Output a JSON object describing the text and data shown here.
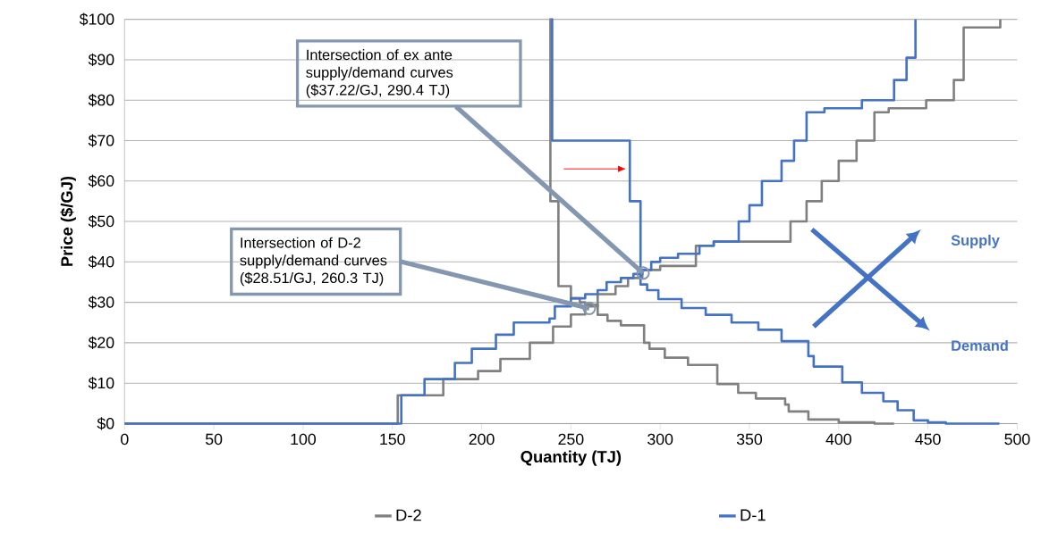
{
  "chart_data": {
    "type": "step",
    "xlabel": "Quantity (TJ)",
    "ylabel": "Price ($/GJ)",
    "xlim": [
      0,
      500
    ],
    "ylim": [
      0,
      100
    ],
    "xticks": [
      0,
      50,
      100,
      150,
      200,
      250,
      300,
      350,
      400,
      450,
      500
    ],
    "yticks": [
      {
        "value": 0,
        "label": "$0"
      },
      {
        "value": 10,
        "label": "$10"
      },
      {
        "value": 20,
        "label": "$20"
      },
      {
        "value": 30,
        "label": "$30"
      },
      {
        "value": 40,
        "label": "$40"
      },
      {
        "value": 50,
        "label": "$50"
      },
      {
        "value": 60,
        "label": "$60"
      },
      {
        "value": 70,
        "label": "$70"
      },
      {
        "value": 80,
        "label": "$80"
      },
      {
        "value": 90,
        "label": "$90"
      },
      {
        "value": 100,
        "label": "$100"
      }
    ],
    "grid": "y",
    "legend": "bottom",
    "marker": "none",
    "series": [
      {
        "name": "D-2",
        "color": "#808080",
        "x": [
          0,
          153,
          178.5,
          198,
          210.5,
          227,
          240,
          250,
          258,
          265,
          275,
          282,
          290,
          300,
          320,
          330,
          373,
          382,
          390.5,
          400,
          410,
          420,
          428,
          449,
          464.5,
          470,
          490.5
        ],
        "values": [
          0,
          7,
          11,
          13,
          16,
          20,
          24,
          27,
          29,
          32,
          34,
          36,
          38,
          39,
          44,
          45,
          50,
          55,
          60,
          65,
          70,
          77,
          78,
          80,
          85,
          98,
          100
        ]
      },
      {
        "color": "#808080",
        "x": [
          238,
          238.5,
          243,
          250,
          255,
          258,
          265,
          270.5,
          278,
          291,
          294,
          302.6,
          315.6,
          332,
          343.7,
          353.6,
          370,
          372,
          383,
          400,
          420,
          431
        ],
        "values": [
          100,
          55,
          34,
          31,
          30,
          29.4,
          26.9,
          25.4,
          24.3,
          20,
          18.5,
          16.3,
          14.5,
          9.8,
          7.6,
          6.2,
          4.7,
          3,
          1,
          0.3,
          0,
          0
        ]
      },
      {
        "name": "D-1",
        "color": "#4472c4",
        "x": [
          0,
          155,
          168,
          185,
          194.5,
          208,
          218,
          238,
          241,
          250,
          258,
          265,
          270,
          278,
          285,
          290,
          295,
          300,
          310,
          322,
          330,
          344,
          350,
          357,
          368,
          375,
          382,
          392,
          413,
          431,
          438,
          443
        ],
        "values": [
          0,
          7,
          11,
          15,
          18.5,
          22,
          25,
          26,
          29,
          31,
          32,
          33,
          35,
          36,
          37,
          38,
          40,
          41,
          42,
          44,
          45,
          50,
          54,
          60,
          65,
          70,
          77,
          78,
          80,
          85,
          90.5,
          100
        ]
      },
      {
        "color": "#4472c4",
        "x": [
          239,
          239.5,
          283,
          289,
          292.7,
          299,
          312,
          325.5,
          340,
          355,
          368,
          383,
          386,
          402,
          413,
          425,
          433,
          442,
          450,
          460,
          490
        ],
        "values": [
          100,
          70,
          55,
          34.4,
          33,
          30.8,
          28.6,
          26.9,
          25,
          23.2,
          20.4,
          16.7,
          14.1,
          10.2,
          7.6,
          5.5,
          3.3,
          0.8,
          0.3,
          0,
          0
        ]
      }
    ],
    "annotations": [
      {
        "text": "Intersection of ex ante supply/demand curves ($37.22/GJ, 290.4 TJ)",
        "x": 290.4,
        "y": 37.22
      },
      {
        "text": "Intersection of D-2 supply/demand curves ($28.51/GJ, 260.3 TJ)",
        "x": 260.3,
        "y": 28.51
      },
      "Supply",
      "Demand"
    ]
  }
}
